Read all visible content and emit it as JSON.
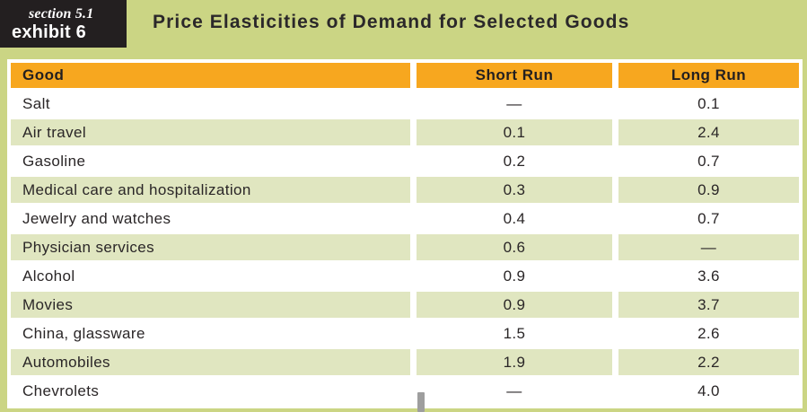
{
  "header": {
    "badge": {
      "section_label": "section 5.1",
      "exhibit_label": "exhibit 6"
    },
    "title": "Price Elasticities of Demand for Selected Goods"
  },
  "table": {
    "columns": [
      "Good",
      "Short Run",
      "Long Run"
    ],
    "rows": [
      {
        "good": "Salt",
        "short_run": "—",
        "long_run": "0.1"
      },
      {
        "good": "Air travel",
        "short_run": "0.1",
        "long_run": "2.4"
      },
      {
        "good": "Gasoline",
        "short_run": "0.2",
        "long_run": "0.7"
      },
      {
        "good": "Medical care and hospitalization",
        "short_run": "0.3",
        "long_run": "0.9"
      },
      {
        "good": "Jewelry and watches",
        "short_run": "0.4",
        "long_run": "0.7"
      },
      {
        "good": "Physician services",
        "short_run": "0.6",
        "long_run": "—"
      },
      {
        "good": "Alcohol",
        "short_run": "0.9",
        "long_run": "3.6"
      },
      {
        "good": "Movies",
        "short_run": "0.9",
        "long_run": "3.7"
      },
      {
        "good": "China, glassware",
        "short_run": "1.5",
        "long_run": "2.6"
      },
      {
        "good": "Automobiles",
        "short_run": "1.9",
        "long_run": "2.2"
      },
      {
        "good": "Chevrolets",
        "short_run": "—",
        "long_run": "4.0"
      }
    ]
  },
  "colors": {
    "panel_background": "#cbd584",
    "table_header_background": "#f7a71f",
    "row_alternate_background": "#e0e6c0",
    "row_background": "#ffffff",
    "badge_background": "#231f20",
    "text": "#2a2627"
  }
}
